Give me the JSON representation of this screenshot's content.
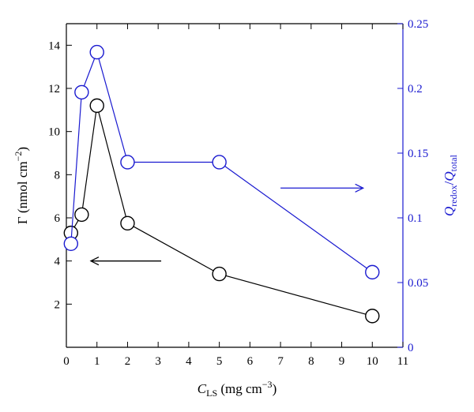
{
  "chart_data": {
    "type": "line",
    "xlabel": {
      "main": "C",
      "sub": "LS",
      "unit_pre": " (mg cm",
      "unit_sup": "−3",
      "unit_post": ")"
    },
    "ylabel_left": {
      "symbol": "Γ",
      "unit_pre": " (nmol cm",
      "unit_sup": "−2",
      "unit_post": ")"
    },
    "ylabel_right": {
      "q1": "Q",
      "sub1": "redox",
      "slash": "/",
      "q2": "Q",
      "sub2": "total"
    },
    "xlim": [
      0,
      11
    ],
    "ylim_left": [
      0,
      15
    ],
    "ylim_right": [
      0,
      0.25
    ],
    "x_ticks": [
      "0",
      "1",
      "2",
      "3",
      "4",
      "5",
      "6",
      "7",
      "8",
      "9",
      "10",
      "11"
    ],
    "y_left_ticks": [
      "2",
      "4",
      "6",
      "8",
      "10",
      "12",
      "14"
    ],
    "y_right_ticks": [
      "0",
      "0.05",
      "0.1",
      "0.15",
      "0.2",
      "0.25"
    ],
    "colors": {
      "left": "#000000",
      "right": "#1a1ad0"
    },
    "series": [
      {
        "axis": "left",
        "color": "#000000",
        "x": [
          0.15,
          0.5,
          1,
          2,
          5,
          10
        ],
        "y": [
          5.3,
          6.15,
          11.2,
          5.75,
          3.4,
          1.45
        ]
      },
      {
        "axis": "right",
        "color": "#1a1ad0",
        "x": [
          0.15,
          0.5,
          1,
          2,
          5,
          10
        ],
        "y": [
          0.08,
          0.197,
          0.228,
          0.143,
          0.143,
          0.058
        ]
      }
    ],
    "annotations": [
      {
        "type": "arrow",
        "direction": "left",
        "axis": "left",
        "x_from": 3.1,
        "x_to": 0.8,
        "y": 4.0
      },
      {
        "type": "arrow",
        "direction": "right",
        "axis": "right",
        "x_from": 7.0,
        "x_to": 9.7,
        "y": 0.123
      }
    ]
  }
}
